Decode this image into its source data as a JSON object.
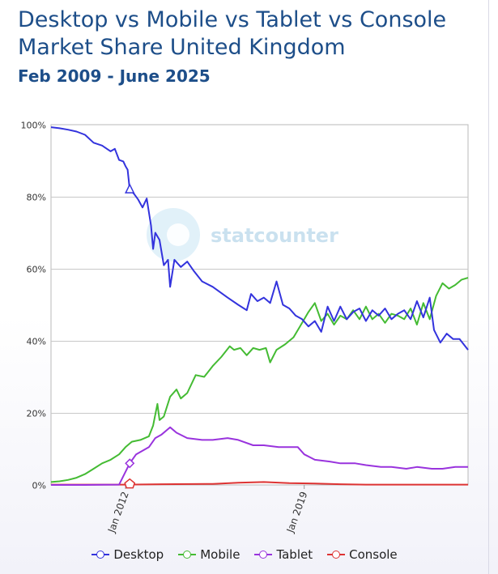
{
  "title": "Desktop vs Mobile vs Tablet vs Console Market Share United Kingdom",
  "subtitle": "Feb 2009 - June 2025",
  "watermark": "statcounter",
  "colors": {
    "title": "#1d4e89",
    "desktop": "#3333dd",
    "mobile": "#44bb33",
    "tablet": "#9933dd",
    "console": "#dd3333",
    "grid": "#c8c8c8"
  },
  "chart_data": {
    "type": "line",
    "title": "Desktop vs Mobile vs Tablet vs Console Market Share United Kingdom",
    "subtitle": "Feb 2009 - June 2025",
    "x_start": "2009-02",
    "x_end": "2025-06",
    "xticks": [
      "Jan 2012",
      "Jan 2019"
    ],
    "xtick_dates": [
      "2012-01",
      "2019-01"
    ],
    "yticks": [
      "0%",
      "20%",
      "40%",
      "60%",
      "80%",
      "100%"
    ],
    "ylim": [
      0,
      100
    ],
    "grid": true,
    "legend_position": "bottom",
    "series": [
      {
        "name": "Desktop",
        "color": "#3333dd",
        "points": [
          [
            "2009-02",
            99.3
          ],
          [
            "2009-06",
            99.0
          ],
          [
            "2009-10",
            98.6
          ],
          [
            "2010-02",
            98.1
          ],
          [
            "2010-06",
            97.2
          ],
          [
            "2010-10",
            95.0
          ],
          [
            "2011-02",
            94.2
          ],
          [
            "2011-06",
            92.6
          ],
          [
            "2011-08",
            93.3
          ],
          [
            "2011-10",
            90.2
          ],
          [
            "2011-12",
            89.8
          ],
          [
            "2012-01",
            88.5
          ],
          [
            "2012-02",
            87.5
          ],
          [
            "2012-03",
            82.0
          ],
          [
            "2012-05",
            80.8
          ],
          [
            "2012-07",
            79.2
          ],
          [
            "2012-09",
            77.0
          ],
          [
            "2012-11",
            79.5
          ],
          [
            "2013-01",
            72.0
          ],
          [
            "2013-02",
            65.5
          ],
          [
            "2013-03",
            70.0
          ],
          [
            "2013-05",
            68.0
          ],
          [
            "2013-07",
            61.0
          ],
          [
            "2013-09",
            62.5
          ],
          [
            "2013-10",
            55.0
          ],
          [
            "2013-12",
            62.5
          ],
          [
            "2014-03",
            60.5
          ],
          [
            "2014-06",
            62.0
          ],
          [
            "2014-09",
            59.5
          ],
          [
            "2015-01",
            56.5
          ],
          [
            "2015-06",
            55.0
          ],
          [
            "2016-01",
            52.0
          ],
          [
            "2016-06",
            50.0
          ],
          [
            "2016-10",
            48.5
          ],
          [
            "2016-12",
            53.0
          ],
          [
            "2017-03",
            51.0
          ],
          [
            "2017-06",
            52.0
          ],
          [
            "2017-09",
            50.5
          ],
          [
            "2017-12",
            56.5
          ],
          [
            "2018-03",
            50.0
          ],
          [
            "2018-06",
            49.0
          ],
          [
            "2018-09",
            47.0
          ],
          [
            "2018-12",
            46.0
          ],
          [
            "2019-03",
            44.0
          ],
          [
            "2019-06",
            45.5
          ],
          [
            "2019-09",
            42.5
          ],
          [
            "2019-12",
            49.5
          ],
          [
            "2020-03",
            45.5
          ],
          [
            "2020-06",
            49.5
          ],
          [
            "2020-09",
            46.0
          ],
          [
            "2020-12",
            48.0
          ],
          [
            "2021-03",
            49.0
          ],
          [
            "2021-06",
            45.5
          ],
          [
            "2021-09",
            48.5
          ],
          [
            "2021-12",
            47.0
          ],
          [
            "2022-03",
            49.0
          ],
          [
            "2022-06",
            46.0
          ],
          [
            "2022-09",
            47.5
          ],
          [
            "2022-12",
            48.5
          ],
          [
            "2023-03",
            46.0
          ],
          [
            "2023-06",
            51.0
          ],
          [
            "2023-09",
            46.5
          ],
          [
            "2023-12",
            52.0
          ],
          [
            "2024-02",
            43.0
          ],
          [
            "2024-05",
            39.5
          ],
          [
            "2024-08",
            42.0
          ],
          [
            "2024-11",
            40.5
          ],
          [
            "2025-02",
            40.5
          ],
          [
            "2025-06",
            37.5
          ]
        ]
      },
      {
        "name": "Mobile",
        "color": "#44bb33",
        "points": [
          [
            "2009-02",
            0.8
          ],
          [
            "2009-06",
            1.0
          ],
          [
            "2009-10",
            1.4
          ],
          [
            "2010-02",
            2.0
          ],
          [
            "2010-06",
            3.0
          ],
          [
            "2010-10",
            4.5
          ],
          [
            "2011-02",
            6.0
          ],
          [
            "2011-06",
            7.0
          ],
          [
            "2011-10",
            8.5
          ],
          [
            "2012-01",
            10.5
          ],
          [
            "2012-04",
            12.0
          ],
          [
            "2012-08",
            12.5
          ],
          [
            "2012-12",
            13.5
          ],
          [
            "2013-02",
            16.5
          ],
          [
            "2013-04",
            22.5
          ],
          [
            "2013-05",
            18.0
          ],
          [
            "2013-07",
            19.0
          ],
          [
            "2013-10",
            24.5
          ],
          [
            "2014-01",
            26.5
          ],
          [
            "2014-03",
            24.0
          ],
          [
            "2014-06",
            25.5
          ],
          [
            "2014-10",
            30.5
          ],
          [
            "2015-02",
            30.0
          ],
          [
            "2015-06",
            33.0
          ],
          [
            "2015-10",
            35.5
          ],
          [
            "2016-02",
            38.5
          ],
          [
            "2016-04",
            37.5
          ],
          [
            "2016-07",
            38.0
          ],
          [
            "2016-10",
            36.0
          ],
          [
            "2017-01",
            38.0
          ],
          [
            "2017-04",
            37.5
          ],
          [
            "2017-07",
            38.0
          ],
          [
            "2017-09",
            34.0
          ],
          [
            "2017-12",
            37.5
          ],
          [
            "2018-04",
            39.0
          ],
          [
            "2018-08",
            41.0
          ],
          [
            "2018-12",
            45.0
          ],
          [
            "2019-03",
            48.0
          ],
          [
            "2019-06",
            50.5
          ],
          [
            "2019-09",
            45.5
          ],
          [
            "2019-12",
            47.5
          ],
          [
            "2020-03",
            44.5
          ],
          [
            "2020-06",
            47.0
          ],
          [
            "2020-09",
            46.0
          ],
          [
            "2020-12",
            48.5
          ],
          [
            "2021-03",
            46.0
          ],
          [
            "2021-06",
            49.5
          ],
          [
            "2021-09",
            46.0
          ],
          [
            "2021-12",
            47.5
          ],
          [
            "2022-03",
            45.0
          ],
          [
            "2022-06",
            47.5
          ],
          [
            "2022-09",
            47.0
          ],
          [
            "2022-12",
            46.0
          ],
          [
            "2023-03",
            49.0
          ],
          [
            "2023-06",
            44.5
          ],
          [
            "2023-09",
            50.5
          ],
          [
            "2023-12",
            46.0
          ],
          [
            "2024-03",
            52.5
          ],
          [
            "2024-06",
            56.0
          ],
          [
            "2024-09",
            54.5
          ],
          [
            "2024-12",
            55.5
          ],
          [
            "2025-03",
            57.0
          ],
          [
            "2025-06",
            57.5
          ]
        ]
      },
      {
        "name": "Tablet",
        "color": "#9933dd",
        "points": [
          [
            "2009-02",
            0.0
          ],
          [
            "2010-06",
            0.0
          ],
          [
            "2011-10",
            0.1
          ],
          [
            "2012-03",
            6.0
          ],
          [
            "2012-06",
            8.5
          ],
          [
            "2012-09",
            9.5
          ],
          [
            "2012-12",
            10.5
          ],
          [
            "2013-03",
            13.0
          ],
          [
            "2013-06",
            14.0
          ],
          [
            "2013-09",
            15.5
          ],
          [
            "2013-10",
            16.0
          ],
          [
            "2014-01",
            14.5
          ],
          [
            "2014-06",
            13.0
          ],
          [
            "2015-01",
            12.5
          ],
          [
            "2015-06",
            12.5
          ],
          [
            "2016-01",
            13.0
          ],
          [
            "2016-06",
            12.5
          ],
          [
            "2017-01",
            11.0
          ],
          [
            "2017-06",
            11.0
          ],
          [
            "2018-01",
            10.5
          ],
          [
            "2018-06",
            10.5
          ],
          [
            "2018-10",
            10.5
          ],
          [
            "2019-01",
            8.5
          ],
          [
            "2019-06",
            7.0
          ],
          [
            "2020-01",
            6.5
          ],
          [
            "2020-06",
            6.0
          ],
          [
            "2021-01",
            6.0
          ],
          [
            "2021-06",
            5.5
          ],
          [
            "2022-01",
            5.0
          ],
          [
            "2022-06",
            5.0
          ],
          [
            "2023-01",
            4.5
          ],
          [
            "2023-06",
            5.0
          ],
          [
            "2024-01",
            4.5
          ],
          [
            "2024-06",
            4.5
          ],
          [
            "2024-12",
            5.0
          ],
          [
            "2025-06",
            5.0
          ]
        ]
      },
      {
        "name": "Console",
        "color": "#dd3333",
        "points": [
          [
            "2009-02",
            0.1
          ],
          [
            "2012-01",
            0.1
          ],
          [
            "2013-06",
            0.2
          ],
          [
            "2015-06",
            0.3
          ],
          [
            "2016-06",
            0.6
          ],
          [
            "2017-06",
            0.8
          ],
          [
            "2018-06",
            0.5
          ],
          [
            "2019-06",
            0.4
          ],
          [
            "2020-06",
            0.2
          ],
          [
            "2021-06",
            0.1
          ],
          [
            "2022-06",
            0.1
          ],
          [
            "2023-06",
            0.1
          ],
          [
            "2024-06",
            0.1
          ],
          [
            "2025-06",
            0.1
          ]
        ]
      }
    ],
    "legend": [
      "Desktop",
      "Mobile",
      "Tablet",
      "Console"
    ]
  }
}
